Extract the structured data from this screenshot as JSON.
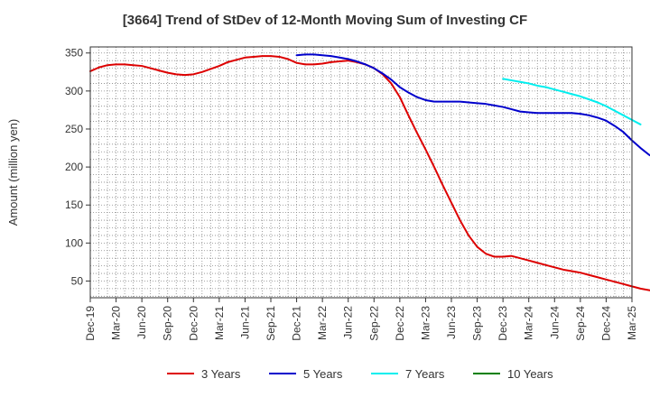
{
  "chart_data": {
    "type": "line",
    "title": "[3664]  Trend of StDev of 12-Month Moving Sum of Investing CF",
    "xlabel": "",
    "ylabel": "Amount (million yen)",
    "ylim": [
      28,
      358
    ],
    "y_ticks": [
      50,
      100,
      150,
      200,
      250,
      300,
      350
    ],
    "x_ticks": [
      "Dec-19",
      "Mar-20",
      "Jun-20",
      "Sep-20",
      "Dec-20",
      "Mar-21",
      "Jun-21",
      "Sep-21",
      "Dec-21",
      "Mar-22",
      "Jun-22",
      "Sep-22",
      "Dec-22",
      "Mar-23",
      "Jun-23",
      "Sep-23",
      "Dec-23",
      "Mar-24",
      "Jun-24",
      "Sep-24",
      "Dec-24",
      "Mar-25"
    ],
    "grid": true,
    "legend_position": "bottom",
    "series": [
      {
        "name": "3 Years",
        "color": "#dd0000",
        "points": [
          [
            "Dec-19",
            326
          ],
          [
            "Jan-20",
            331
          ],
          [
            "Feb-20",
            334
          ],
          [
            "Mar-20",
            335
          ],
          [
            "Apr-20",
            335
          ],
          [
            "May-20",
            334
          ],
          [
            "Jun-20",
            333
          ],
          [
            "Jul-20",
            330
          ],
          [
            "Aug-20",
            327
          ],
          [
            "Sep-20",
            324
          ],
          [
            "Oct-20",
            322
          ],
          [
            "Nov-20",
            321
          ],
          [
            "Dec-20",
            322
          ],
          [
            "Jan-21",
            325
          ],
          [
            "Feb-21",
            329
          ],
          [
            "Mar-21",
            333
          ],
          [
            "Apr-21",
            338
          ],
          [
            "May-21",
            341
          ],
          [
            "Jun-21",
            344
          ],
          [
            "Jul-21",
            345
          ],
          [
            "Aug-21",
            346
          ],
          [
            "Sep-21",
            346
          ],
          [
            "Oct-21",
            345
          ],
          [
            "Nov-21",
            342
          ],
          [
            "Dec-21",
            337
          ],
          [
            "Jan-22",
            335
          ],
          [
            "Feb-22",
            335
          ],
          [
            "Mar-22",
            336
          ],
          [
            "Apr-22",
            338
          ],
          [
            "May-22",
            339
          ],
          [
            "Jun-22",
            340
          ],
          [
            "Jul-22",
            338
          ],
          [
            "Aug-22",
            335
          ],
          [
            "Sep-22",
            330
          ],
          [
            "Oct-22",
            322
          ],
          [
            "Nov-22",
            310
          ],
          [
            "Dec-22",
            292
          ],
          [
            "Jan-23",
            268
          ],
          [
            "Feb-23",
            245
          ],
          [
            "Mar-23",
            223
          ],
          [
            "Apr-23",
            200
          ],
          [
            "May-23",
            176
          ],
          [
            "Jun-23",
            153
          ],
          [
            "Jul-23",
            130
          ],
          [
            "Aug-23",
            110
          ],
          [
            "Sep-23",
            95
          ],
          [
            "Oct-23",
            86
          ],
          [
            "Nov-23",
            82
          ],
          [
            "Dec-23",
            82
          ],
          [
            "Jan-24",
            83
          ],
          [
            "Feb-24",
            80
          ],
          [
            "Mar-24",
            77
          ],
          [
            "Apr-24",
            74
          ],
          [
            "May-24",
            71
          ],
          [
            "Jun-24",
            68
          ],
          [
            "Jul-24",
            65
          ],
          [
            "Aug-24",
            63
          ],
          [
            "Sep-24",
            61
          ],
          [
            "Oct-24",
            58
          ],
          [
            "Nov-24",
            55
          ],
          [
            "Dec-24",
            52
          ],
          [
            "Jan-25",
            49
          ],
          [
            "Feb-25",
            46
          ],
          [
            "Mar-25",
            43
          ],
          [
            "Apr-25",
            40
          ],
          [
            "May-25",
            38
          ],
          [
            "Jun-25",
            35
          ]
        ]
      },
      {
        "name": "5 Years",
        "color": "#0000cc",
        "points": [
          [
            "Dec-21",
            347
          ],
          [
            "Jan-22",
            348
          ],
          [
            "Feb-22",
            348
          ],
          [
            "Mar-22",
            347
          ],
          [
            "Apr-22",
            346
          ],
          [
            "May-22",
            344
          ],
          [
            "Jun-22",
            342
          ],
          [
            "Jul-22",
            339
          ],
          [
            "Aug-22",
            335
          ],
          [
            "Sep-22",
            330
          ],
          [
            "Oct-22",
            323
          ],
          [
            "Nov-22",
            315
          ],
          [
            "Dec-22",
            305
          ],
          [
            "Jan-23",
            298
          ],
          [
            "Feb-23",
            292
          ],
          [
            "Mar-23",
            288
          ],
          [
            "Apr-23",
            286
          ],
          [
            "May-23",
            286
          ],
          [
            "Jun-23",
            286
          ],
          [
            "Jul-23",
            286
          ],
          [
            "Aug-23",
            285
          ],
          [
            "Sep-23",
            284
          ],
          [
            "Oct-23",
            283
          ],
          [
            "Nov-23",
            281
          ],
          [
            "Dec-23",
            279
          ],
          [
            "Jan-24",
            276
          ],
          [
            "Feb-24",
            273
          ],
          [
            "Mar-24",
            272
          ],
          [
            "Apr-24",
            271
          ],
          [
            "May-24",
            271
          ],
          [
            "Jun-24",
            271
          ],
          [
            "Jul-24",
            271
          ],
          [
            "Aug-24",
            271
          ],
          [
            "Sep-24",
            270
          ],
          [
            "Oct-24",
            268
          ],
          [
            "Nov-24",
            265
          ],
          [
            "Dec-24",
            261
          ],
          [
            "Jan-25",
            254
          ],
          [
            "Feb-25",
            246
          ],
          [
            "Mar-25",
            235
          ],
          [
            "Apr-25",
            225
          ],
          [
            "May-25",
            216
          ],
          [
            "Jun-25",
            210
          ]
        ]
      },
      {
        "name": "7 Years",
        "color": "#00eeee",
        "points": [
          [
            "Dec-23",
            316
          ],
          [
            "Jan-24",
            314
          ],
          [
            "Feb-24",
            312
          ],
          [
            "Mar-24",
            310
          ],
          [
            "Apr-24",
            307
          ],
          [
            "May-24",
            305
          ],
          [
            "Jun-24",
            302
          ],
          [
            "Jul-24",
            299
          ],
          [
            "Aug-24",
            296
          ],
          [
            "Sep-24",
            293
          ],
          [
            "Oct-24",
            289
          ],
          [
            "Nov-24",
            285
          ],
          [
            "Dec-24",
            280
          ],
          [
            "Jan-25",
            274
          ],
          [
            "Feb-25",
            268
          ],
          [
            "Mar-25",
            262
          ],
          [
            "Apr-25",
            256
          ]
        ]
      },
      {
        "name": "10 Years",
        "color": "#008000",
        "points": []
      }
    ]
  }
}
